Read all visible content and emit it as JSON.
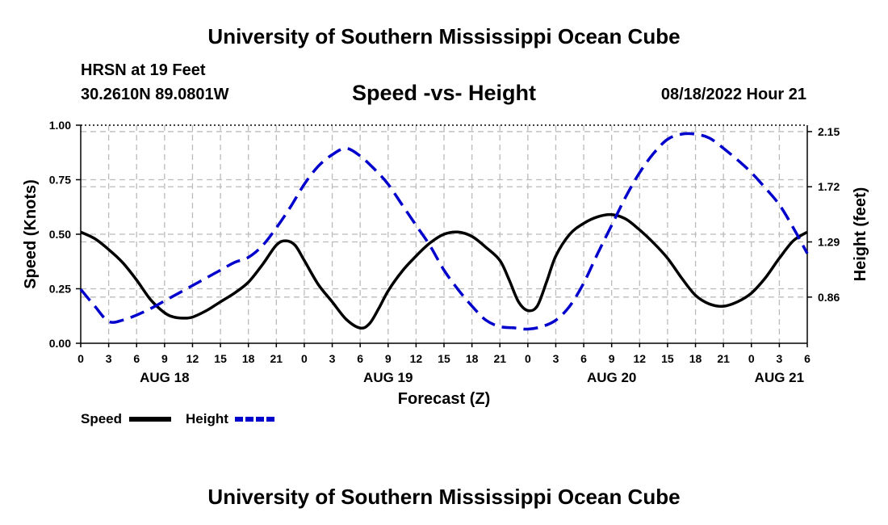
{
  "header": {
    "title": "University of Southern Mississippi Ocean Cube",
    "station": "HRSN at 19 Feet",
    "coords": "30.2610N  89.0801W",
    "subtitle": "Speed -vs- Height",
    "timestamp": "08/18/2022 Hour 21"
  },
  "footer": {
    "title": "University of Southern Mississippi Ocean Cube"
  },
  "legend": {
    "speed_label": "Speed",
    "height_label": "Height"
  },
  "colors": {
    "speed": "#000000",
    "height": "#0000cc",
    "grid": "#bbbbbb"
  },
  "chart_data": {
    "type": "line",
    "xlabel": "Forecast (Z)",
    "ylabel": "Speed (Knots)",
    "y2label": "Height (feet)",
    "xlim": [
      0,
      78
    ],
    "ylim": [
      0,
      1
    ],
    "y2lim": [
      0.5,
      2.2
    ],
    "x_unit": "hours since Aug 18 00Z",
    "x_ticks": [
      0,
      3,
      6,
      9,
      12,
      15,
      18,
      21,
      24,
      27,
      30,
      33,
      36,
      39,
      42,
      45,
      48,
      51,
      54,
      57,
      60,
      63,
      66,
      69,
      72,
      75,
      78
    ],
    "x_tick_labels": [
      "0",
      "3",
      "6",
      "9",
      "12",
      "15",
      "18",
      "21",
      "0",
      "3",
      "6",
      "9",
      "12",
      "15",
      "18",
      "21",
      "0",
      "3",
      "6",
      "9",
      "12",
      "15",
      "18",
      "21",
      "0",
      "3",
      "6"
    ],
    "y_ticks": [
      0,
      0.25,
      0.5,
      0.75,
      1.0
    ],
    "y_tick_labels": [
      "0.00",
      "0.25",
      "0.50",
      "0.75",
      "1.00"
    ],
    "y2_ticks": [
      0.86,
      1.29,
      1.72,
      2.15
    ],
    "y2_tick_labels": [
      "0.86",
      "1.29",
      "1.72",
      "2.15"
    ],
    "day_labels": [
      {
        "x": 9,
        "label": "AUG 18"
      },
      {
        "x": 33,
        "label": "AUG 19"
      },
      {
        "x": 57,
        "label": "AUG 20"
      },
      {
        "x": 75,
        "label": "AUG 21"
      }
    ],
    "series": [
      {
        "name": "Speed",
        "axis": "left",
        "style": "solid",
        "x": [
          0,
          1.5,
          3,
          4.5,
          6,
          7.5,
          9,
          10,
          11,
          12,
          13.5,
          15,
          16.5,
          18,
          19.5,
          21,
          22,
          23,
          24,
          25.5,
          27,
          28.5,
          30,
          31,
          32,
          33,
          34.5,
          36,
          37.5,
          39,
          40.5,
          42,
          43.5,
          45,
          46,
          47,
          48,
          49,
          50,
          51,
          52.5,
          54,
          55.5,
          57,
          58.5,
          60,
          61.5,
          63,
          64.5,
          66,
          67.5,
          69,
          70.5,
          72,
          73.5,
          75,
          76.5,
          78
        ],
        "values": [
          0.51,
          0.48,
          0.43,
          0.37,
          0.29,
          0.2,
          0.14,
          0.12,
          0.115,
          0.12,
          0.15,
          0.19,
          0.23,
          0.28,
          0.36,
          0.45,
          0.47,
          0.45,
          0.38,
          0.27,
          0.19,
          0.11,
          0.07,
          0.09,
          0.16,
          0.24,
          0.33,
          0.4,
          0.46,
          0.5,
          0.51,
          0.49,
          0.44,
          0.38,
          0.29,
          0.19,
          0.15,
          0.17,
          0.28,
          0.4,
          0.5,
          0.55,
          0.58,
          0.59,
          0.57,
          0.52,
          0.46,
          0.39,
          0.3,
          0.22,
          0.18,
          0.17,
          0.19,
          0.23,
          0.3,
          0.39,
          0.47,
          0.51
        ]
      },
      {
        "name": "Height",
        "axis": "right",
        "style": "dashed",
        "x": [
          0,
          1.5,
          3,
          4.5,
          6,
          7.5,
          9,
          10.5,
          12,
          13.5,
          15,
          16.5,
          18,
          19.5,
          21,
          22.5,
          24,
          25.5,
          27,
          28.5,
          30,
          31.5,
          33,
          34.5,
          36,
          37.5,
          39,
          40.5,
          42,
          43.5,
          45,
          46.5,
          48,
          49.5,
          51,
          52.5,
          54,
          55.5,
          57,
          58.5,
          60,
          61.5,
          63,
          64.5,
          66,
          67.5,
          69,
          70.5,
          72,
          73.5,
          75,
          76.5,
          78
        ],
        "values": [
          0.92,
          0.79,
          0.67,
          0.68,
          0.72,
          0.77,
          0.83,
          0.89,
          0.95,
          1.01,
          1.07,
          1.13,
          1.17,
          1.26,
          1.4,
          1.56,
          1.74,
          1.88,
          1.97,
          2.02,
          1.96,
          1.86,
          1.74,
          1.58,
          1.42,
          1.26,
          1.07,
          0.92,
          0.79,
          0.68,
          0.63,
          0.62,
          0.61,
          0.63,
          0.68,
          0.79,
          0.97,
          1.2,
          1.42,
          1.64,
          1.83,
          1.98,
          2.09,
          2.13,
          2.13,
          2.1,
          2.02,
          1.93,
          1.83,
          1.71,
          1.58,
          1.4,
          1.2
        ]
      }
    ]
  }
}
